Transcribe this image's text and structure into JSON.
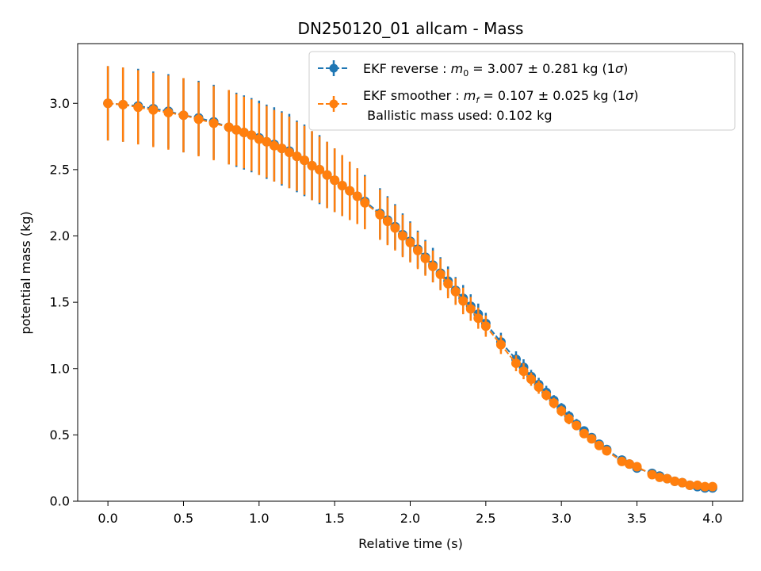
{
  "chart_data": {
    "type": "scatter",
    "title": "DN250120_01 allcam - Mass",
    "xlabel": "Relative time (s)",
    "ylabel": "potential mass (kg)",
    "xlim": [
      -0.2,
      4.2
    ],
    "ylim": [
      0.0,
      3.45
    ],
    "xticks": [
      0.0,
      0.5,
      1.0,
      1.5,
      2.0,
      2.5,
      3.0,
      3.5,
      4.0
    ],
    "xtick_labels": [
      "0.0",
      "0.5",
      "1.0",
      "1.5",
      "2.0",
      "2.5",
      "3.0",
      "3.5",
      "4.0"
    ],
    "yticks": [
      0.0,
      0.5,
      1.0,
      1.5,
      2.0,
      2.5,
      3.0
    ],
    "ytick_labels": [
      "0.0",
      "0.5",
      "1.0",
      "1.5",
      "2.0",
      "2.5",
      "3.0"
    ],
    "legend_position": "top-right",
    "series": [
      {
        "name": "EKF reverse",
        "color": "#1f77b4",
        "style": "dashed line with circle markers and error bars",
        "x": [
          0.0,
          0.1,
          0.2,
          0.3,
          0.4,
          0.5,
          0.6,
          0.7,
          0.8,
          0.85,
          0.9,
          0.95,
          1.0,
          1.05,
          1.1,
          1.15,
          1.2,
          1.25,
          1.3,
          1.35,
          1.4,
          1.45,
          1.5,
          1.55,
          1.6,
          1.65,
          1.7,
          1.8,
          1.85,
          1.9,
          1.95,
          2.0,
          2.05,
          2.1,
          2.15,
          2.2,
          2.25,
          2.3,
          2.35,
          2.4,
          2.45,
          2.5,
          2.6,
          2.7,
          2.75,
          2.8,
          2.85,
          2.9,
          2.95,
          3.0,
          3.05,
          3.1,
          3.15,
          3.2,
          3.25,
          3.3,
          3.4,
          3.45,
          3.5,
          3.6,
          3.65,
          3.7,
          3.75,
          3.8,
          3.85,
          3.9,
          3.95,
          4.0
        ],
        "y": [
          3.0,
          2.99,
          2.98,
          2.96,
          2.94,
          2.91,
          2.89,
          2.86,
          2.82,
          2.8,
          2.78,
          2.76,
          2.74,
          2.71,
          2.69,
          2.66,
          2.64,
          2.6,
          2.57,
          2.53,
          2.5,
          2.46,
          2.42,
          2.38,
          2.34,
          2.3,
          2.26,
          2.17,
          2.12,
          2.07,
          2.01,
          1.96,
          1.9,
          1.84,
          1.78,
          1.72,
          1.66,
          1.59,
          1.53,
          1.47,
          1.41,
          1.34,
          1.2,
          1.07,
          1.01,
          0.94,
          0.88,
          0.82,
          0.76,
          0.7,
          0.64,
          0.58,
          0.53,
          0.48,
          0.43,
          0.39,
          0.31,
          0.28,
          0.25,
          0.21,
          0.19,
          0.17,
          0.15,
          0.14,
          0.12,
          0.11,
          0.1,
          0.1
        ],
        "yerr": [
          0.28,
          0.28,
          0.28,
          0.28,
          0.28,
          0.28,
          0.28,
          0.28,
          0.28,
          0.28,
          0.28,
          0.28,
          0.28,
          0.28,
          0.28,
          0.28,
          0.28,
          0.27,
          0.27,
          0.26,
          0.26,
          0.25,
          0.24,
          0.23,
          0.22,
          0.21,
          0.2,
          0.19,
          0.18,
          0.17,
          0.16,
          0.15,
          0.14,
          0.13,
          0.13,
          0.12,
          0.11,
          0.1,
          0.1,
          0.09,
          0.08,
          0.08,
          0.07,
          0.06,
          0.06,
          0.05,
          0.05,
          0.05,
          0.04,
          0.04,
          0.04,
          0.04,
          0.03,
          0.03,
          0.03,
          0.03,
          0.03,
          0.03,
          0.03,
          0.03,
          0.03,
          0.03,
          0.03,
          0.025,
          0.025,
          0.025,
          0.025,
          0.025
        ],
        "legend_text": "EKF reverse : m₀ =  3.007 ± 0.281 kg (1σ)"
      },
      {
        "name": "EKF smoother",
        "color": "#ff7f0e",
        "style": "dashed line with circle markers and error bars",
        "x": [
          0.0,
          0.1,
          0.2,
          0.3,
          0.4,
          0.5,
          0.6,
          0.7,
          0.8,
          0.85,
          0.9,
          0.95,
          1.0,
          1.05,
          1.1,
          1.15,
          1.2,
          1.25,
          1.3,
          1.35,
          1.4,
          1.45,
          1.5,
          1.55,
          1.6,
          1.65,
          1.7,
          1.8,
          1.85,
          1.9,
          1.95,
          2.0,
          2.05,
          2.1,
          2.15,
          2.2,
          2.25,
          2.3,
          2.35,
          2.4,
          2.45,
          2.5,
          2.6,
          2.7,
          2.75,
          2.8,
          2.85,
          2.9,
          2.95,
          3.0,
          3.05,
          3.1,
          3.15,
          3.2,
          3.25,
          3.3,
          3.4,
          3.45,
          3.5,
          3.6,
          3.65,
          3.7,
          3.75,
          3.8,
          3.85,
          3.9,
          3.95,
          4.0
        ],
        "y": [
          3.0,
          2.99,
          2.97,
          2.95,
          2.93,
          2.91,
          2.88,
          2.85,
          2.82,
          2.8,
          2.78,
          2.76,
          2.73,
          2.71,
          2.68,
          2.66,
          2.63,
          2.6,
          2.57,
          2.53,
          2.5,
          2.46,
          2.42,
          2.38,
          2.34,
          2.3,
          2.25,
          2.16,
          2.11,
          2.06,
          2.0,
          1.95,
          1.89,
          1.83,
          1.77,
          1.71,
          1.64,
          1.58,
          1.51,
          1.45,
          1.38,
          1.32,
          1.18,
          1.04,
          0.98,
          0.92,
          0.86,
          0.8,
          0.74,
          0.68,
          0.62,
          0.57,
          0.51,
          0.47,
          0.42,
          0.38,
          0.3,
          0.28,
          0.26,
          0.2,
          0.18,
          0.17,
          0.15,
          0.14,
          0.12,
          0.12,
          0.11,
          0.11
        ],
        "yerr": [
          0.28,
          0.28,
          0.28,
          0.28,
          0.28,
          0.28,
          0.28,
          0.28,
          0.28,
          0.27,
          0.27,
          0.27,
          0.27,
          0.27,
          0.27,
          0.27,
          0.27,
          0.26,
          0.26,
          0.26,
          0.25,
          0.25,
          0.24,
          0.23,
          0.22,
          0.21,
          0.2,
          0.19,
          0.18,
          0.17,
          0.16,
          0.15,
          0.14,
          0.13,
          0.12,
          0.12,
          0.11,
          0.1,
          0.1,
          0.09,
          0.08,
          0.08,
          0.07,
          0.06,
          0.06,
          0.05,
          0.05,
          0.04,
          0.04,
          0.04,
          0.04,
          0.03,
          0.03,
          0.03,
          0.03,
          0.03,
          0.03,
          0.03,
          0.03,
          0.025,
          0.025,
          0.02,
          0.02,
          0.02,
          0.02,
          0.02,
          0.02,
          0.02
        ],
        "legend_text": "EKF smoother : m_f =  0.107 ± 0.025 kg (1σ)",
        "legend_text_line2": " Ballistic mass used: 0.102 kg"
      }
    ]
  },
  "legend": {
    "reverse": {
      "prefix": "EKF reverse : ",
      "sym": "m",
      "sub": "0",
      "suffix": " =  3.007 ± 0.281 kg (1",
      "sigma": "σ",
      "close": ")"
    },
    "smoother": {
      "prefix": "EKF smoother : ",
      "sym": "m",
      "sub": "f",
      "suffix": " =  0.107 ± 0.025 kg (1",
      "sigma": "σ",
      "close": ")",
      "line2": " Ballistic mass used: 0.102 kg"
    }
  }
}
